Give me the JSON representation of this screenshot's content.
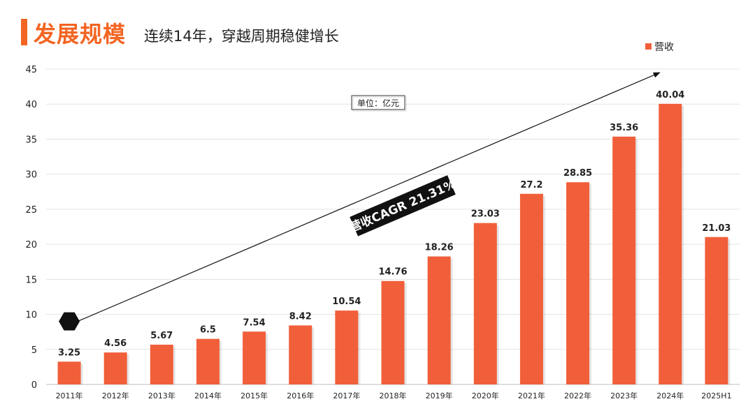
{
  "header": {
    "title": "发展规模",
    "subtitle": "连续14年，穿越周期稳健增长"
  },
  "colors": {
    "accent": "#f26522",
    "bar": "#f15f3a",
    "grid": "#e3e3e3",
    "dark": "#111111"
  },
  "chart_data": {
    "type": "bar",
    "categories": [
      "2011年",
      "2012年",
      "2013年",
      "2014年",
      "2015年",
      "2016年",
      "2017年",
      "2018年",
      "2019年",
      "2020年",
      "2021年",
      "2022年",
      "2023年",
      "2024年",
      "2025H1"
    ],
    "series": [
      {
        "name": "营收",
        "values": [
          3.25,
          4.56,
          5.67,
          6.5,
          7.54,
          8.42,
          10.54,
          14.76,
          18.26,
          23.03,
          27.2,
          28.85,
          35.36,
          40.04,
          21.03
        ]
      }
    ],
    "value_labels": [
      "3.25",
      "4.56",
      "5.67",
      "6.5",
      "7.54",
      "8.42",
      "10.54",
      "14.76",
      "18.26",
      "23.03",
      "27.2",
      "28.85",
      "35.36",
      "40.04",
      "21.03"
    ],
    "ylim": [
      0,
      45
    ],
    "yticks": [
      0,
      5,
      10,
      15,
      20,
      25,
      30,
      35,
      40,
      45
    ],
    "legend": {
      "label": "营收",
      "position": "top-right"
    },
    "unit_note": "单位：亿元",
    "annotation": {
      "text": "营收CAGR 21.31%",
      "arrow_from": {
        "x": "2011年",
        "y": 9
      },
      "arrow_to": {
        "x": "2024年",
        "y": 44.5
      }
    },
    "grid": true
  }
}
